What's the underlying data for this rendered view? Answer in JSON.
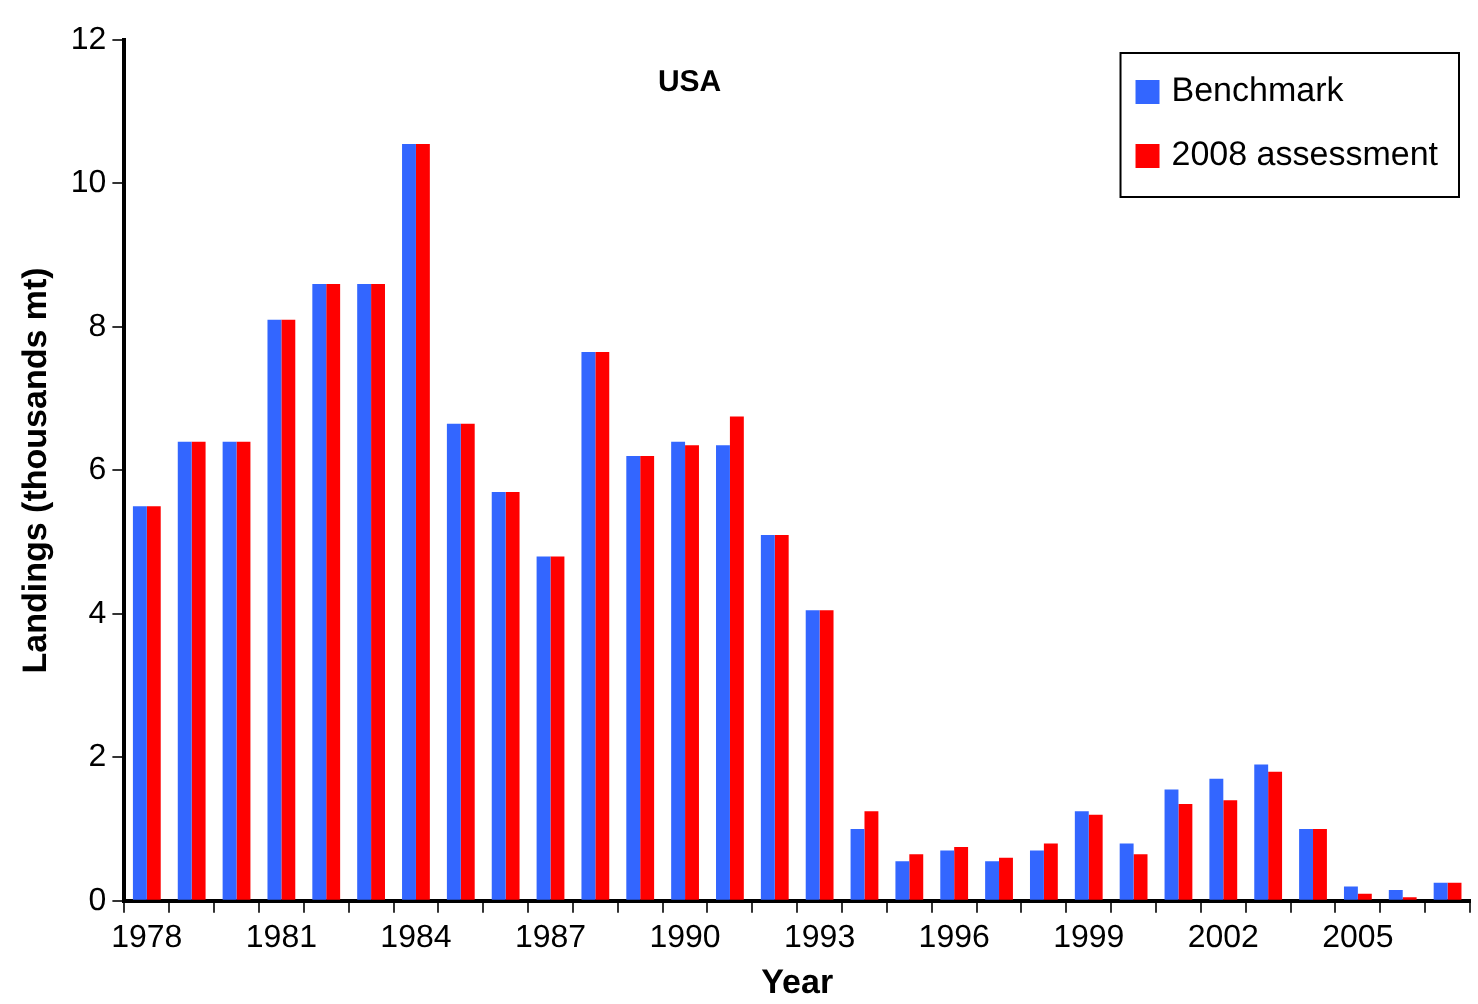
{
  "chart_data": {
    "type": "bar",
    "title": "USA",
    "xlabel": "Year",
    "ylabel": "Landings (thousands mt)",
    "categories": [
      "1978",
      null,
      null,
      "1981",
      null,
      null,
      "1984",
      null,
      null,
      "1987",
      null,
      null,
      "1990",
      null,
      null,
      "1993",
      null,
      null,
      "1996",
      null,
      null,
      "1999",
      null,
      null,
      "2002",
      null,
      null,
      "2005",
      null,
      null
    ],
    "series": [
      {
        "name": "Benchmark",
        "color": "#3366ff",
        "values": [
          5.5,
          6.4,
          6.4,
          8.1,
          8.6,
          8.6,
          10.55,
          6.65,
          5.7,
          4.8,
          7.65,
          6.2,
          6.4,
          6.35,
          5.1,
          4.05,
          1.0,
          0.55,
          0.7,
          0.55,
          0.7,
          1.25,
          0.8,
          1.55,
          1.7,
          1.9,
          1.0,
          0.2,
          0.15,
          0.25
        ]
      },
      {
        "name": "2008 assessment",
        "color": "#ff0000",
        "values": [
          5.5,
          6.4,
          6.4,
          8.1,
          8.6,
          8.6,
          10.55,
          6.65,
          5.7,
          4.8,
          7.65,
          6.2,
          6.35,
          6.75,
          5.1,
          4.05,
          1.25,
          0.65,
          0.75,
          0.6,
          0.8,
          1.2,
          0.65,
          1.35,
          1.4,
          1.8,
          1.0,
          0.1,
          0.05,
          0.25
        ]
      }
    ],
    "ylim": [
      0,
      12
    ],
    "yticks": [
      0,
      2,
      4,
      6,
      8,
      10,
      12
    ],
    "grid": false,
    "legend": "top right"
  }
}
